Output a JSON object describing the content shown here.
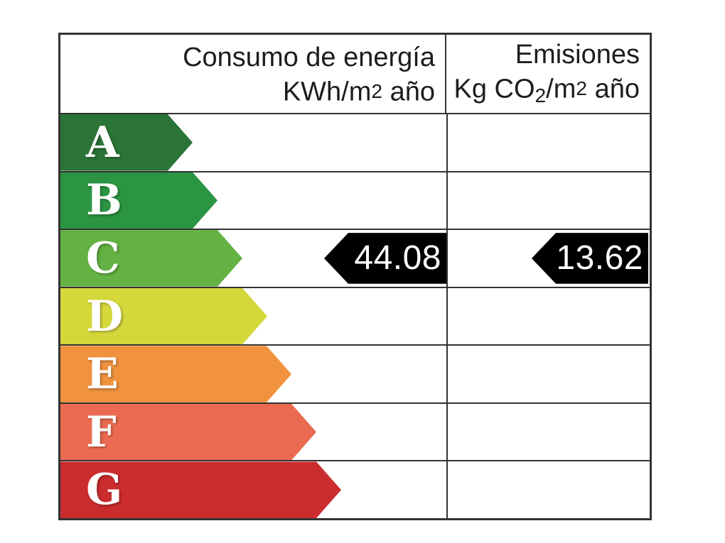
{
  "header": {
    "consumption": {
      "line1": "Consumo de energía",
      "line2_base": "KWh/m",
      "line2_exp": "2",
      "line2_suffix": " año"
    },
    "emissions": {
      "line1": "Emisiones",
      "line2_base": "Kg CO",
      "line2_sub": "2",
      "line2_mid": "/m",
      "line2_exp": "2",
      "line2_suffix": " año"
    }
  },
  "ratings": [
    {
      "letter": "A",
      "color": "#2a7437"
    },
    {
      "letter": "B",
      "color": "#2b9543"
    },
    {
      "letter": "C",
      "color": "#63b243"
    },
    {
      "letter": "D",
      "color": "#d5d83b"
    },
    {
      "letter": "E",
      "color": "#f0923e"
    },
    {
      "letter": "F",
      "color": "#ea6b51"
    },
    {
      "letter": "G",
      "color": "#cb2c2e"
    }
  ],
  "values": {
    "selected_letter": "C",
    "consumption": "44.08",
    "emissions": "13.62",
    "arrow_color": "#000000",
    "value_text_color": "#ffffff"
  },
  "colors": {
    "border": "#333333",
    "header_text": "#1d1d1d",
    "letter_text": "#ffffff",
    "background": "#ffffff"
  },
  "chart_data": {
    "type": "bar",
    "categories": [
      "A",
      "B",
      "C",
      "D",
      "E",
      "F",
      "G"
    ],
    "band_colors": [
      "#2a7437",
      "#2b9543",
      "#63b243",
      "#d5d83b",
      "#f0923e",
      "#ea6b51",
      "#cb2c2e"
    ],
    "selected_rating": "C",
    "series": [
      {
        "name": "Consumo de energía KWh/m2 año",
        "category": "C",
        "value": 44.08
      },
      {
        "name": "Emisiones Kg CO2/m2 año",
        "category": "C",
        "value": 13.62
      }
    ],
    "layout_hint": "energy-label ladder, arrow length increases from A to G, black value arrows point left at rated band"
  }
}
